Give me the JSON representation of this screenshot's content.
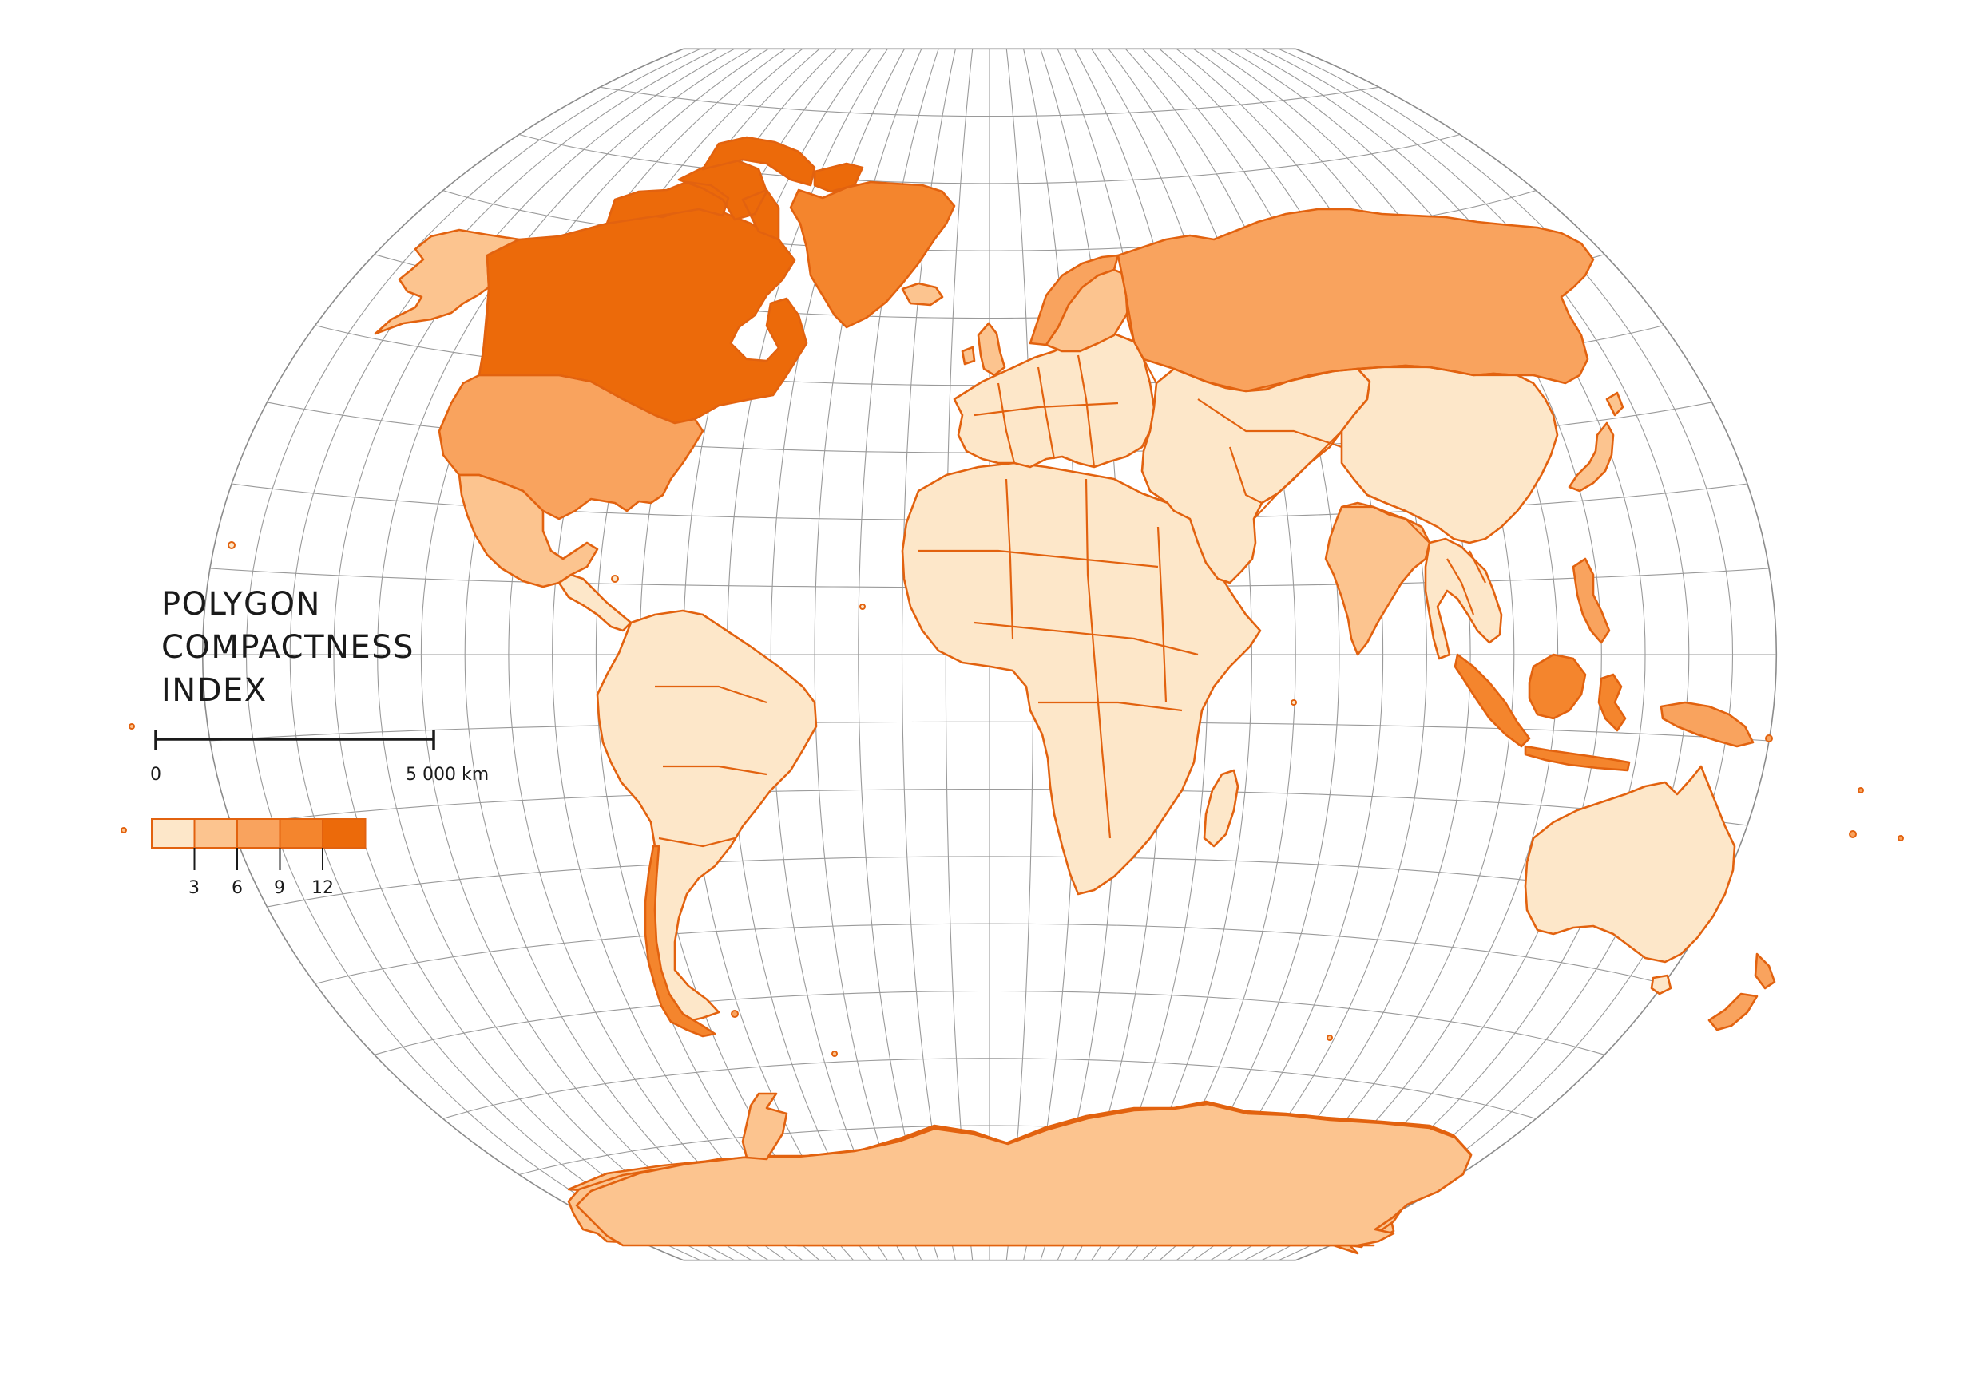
{
  "legend": {
    "title": "POLYGON\nCOMPACTNESS\nINDEX",
    "scale_start": "0",
    "scale_end": "5 000 km",
    "class_breaks": [
      "3",
      "6",
      "9",
      "12"
    ],
    "class_colors": [
      "#fde7c9",
      "#fcc48f",
      "#f9a35e",
      "#f4852d",
      "#ec6a0a"
    ]
  },
  "colors": {
    "outline": "#e2620f",
    "graticule": "#9a9a9a",
    "class1": "#fde7c9",
    "class2": "#fcc48f",
    "class3": "#f9a35e",
    "class4": "#f4852d",
    "class5": "#ec6a0a"
  },
  "regions": [
    {
      "name": "Canada",
      "class": 5
    },
    {
      "name": "Greenland",
      "class": 4
    },
    {
      "name": "Russia",
      "class": 3
    },
    {
      "name": "United States",
      "class": 3
    },
    {
      "name": "Alaska",
      "class": 2
    },
    {
      "name": "Indonesia",
      "class": 4
    },
    {
      "name": "Papua New Guinea",
      "class": 3
    },
    {
      "name": "Philippines",
      "class": 3
    },
    {
      "name": "Norway",
      "class": 3
    },
    {
      "name": "Chile",
      "class": 4
    },
    {
      "name": "New Zealand",
      "class": 3
    },
    {
      "name": "Antarctica",
      "class": 2
    },
    {
      "name": "India",
      "class": 2
    },
    {
      "name": "Mexico",
      "class": 2
    },
    {
      "name": "Australia",
      "class": 1
    },
    {
      "name": "China",
      "class": 1
    },
    {
      "name": "Brazil",
      "class": 1
    },
    {
      "name": "Africa",
      "class": 1
    },
    {
      "name": "Europe",
      "class": 1
    },
    {
      "name": "Middle East and Central Asia",
      "class": 1
    },
    {
      "name": "Madagascar",
      "class": 1
    },
    {
      "name": "Japan",
      "class": 2
    },
    {
      "name": "Sweden and Finland",
      "class": 2
    },
    {
      "name": "Iceland",
      "class": 2
    },
    {
      "name": "United Kingdom",
      "class": 2
    }
  ]
}
